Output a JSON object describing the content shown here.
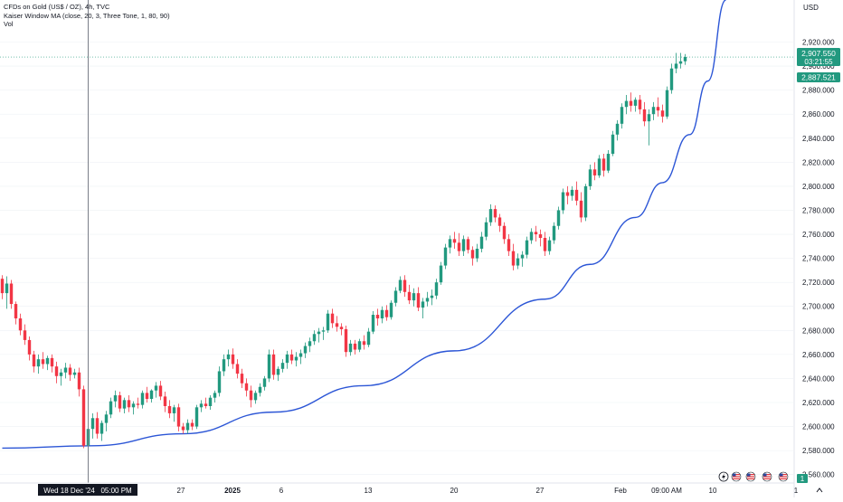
{
  "legend": {
    "title": "CFDs on Gold (US$ / OZ), 4h, TVC",
    "indicator": "Kaiser Window MA (close, 20, 3, Three Tone, 1, 80, 90)",
    "volume": "Vol"
  },
  "colors": {
    "up": "#22997f",
    "down": "#f23645",
    "curve": "#2c56d6",
    "grid": "#eef1f5",
    "axis_text": "#131722",
    "crosshair": "#7b7f89",
    "label_bg": "#131722"
  },
  "crosshair_label": "Wed 18 Dec '24   05:00 PM",
  "price_scale": {
    "currency": "USD",
    "ylim": [
      2553,
      2955
    ],
    "ticks": [
      2560,
      2580,
      2600,
      2620,
      2640,
      2660,
      2680,
      2700,
      2720,
      2740,
      2760,
      2780,
      2800,
      2820,
      2840,
      2860,
      2880,
      2900,
      2920
    ],
    "tick_labels": [
      "2,560.000",
      "2,580.000",
      "2,600.000",
      "2,620.000",
      "2,640.000",
      "2,660.000",
      "2,680.000",
      "2,700.000",
      "2,720.000",
      "2,740.000",
      "2,760.000",
      "2,780.000",
      "2,800.000",
      "2,820.000",
      "2,840.000",
      "2,860.000",
      "2,880.000",
      "2,900.000",
      "2,920.000"
    ],
    "last_price": "2,907.550",
    "countdown": "03:21:55",
    "ma_value": "2,887.521",
    "volume_badge": "1"
  },
  "time_axis": {
    "labels": [
      "27",
      "2025",
      "6",
      "13",
      "20",
      "27",
      "Feb",
      "09:00 AM",
      "10",
      "1"
    ]
  },
  "status_icons": [
    "lightning-icon",
    "us-flag-icon",
    "us-flag-icon",
    "us-flag-icon",
    "us-flag-icon"
  ],
  "chart_data": {
    "type": "candlestick",
    "timeframe": "4h",
    "ohlc": [
      [
        2723,
        2726,
        2706,
        2711
      ],
      [
        2711,
        2725,
        2698,
        2719
      ],
      [
        2719,
        2722,
        2698,
        2702
      ],
      [
        2702,
        2704,
        2685,
        2690
      ],
      [
        2690,
        2694,
        2676,
        2680
      ],
      [
        2680,
        2685,
        2668,
        2672
      ],
      [
        2672,
        2675,
        2655,
        2660
      ],
      [
        2660,
        2663,
        2645,
        2650
      ],
      [
        2650,
        2660,
        2644,
        2656
      ],
      [
        2656,
        2662,
        2648,
        2652
      ],
      [
        2652,
        2659,
        2647,
        2657
      ],
      [
        2657,
        2660,
        2645,
        2650
      ],
      [
        2650,
        2654,
        2636,
        2642
      ],
      [
        2642,
        2648,
        2634,
        2645
      ],
      [
        2645,
        2653,
        2640,
        2649
      ],
      [
        2649,
        2652,
        2638,
        2643
      ],
      [
        2643,
        2648,
        2640,
        2645
      ],
      [
        2645,
        2649,
        2625,
        2631
      ],
      [
        2631,
        2634,
        2582,
        2584
      ],
      [
        2584,
        2600,
        2582,
        2598
      ],
      [
        2598,
        2611,
        2590,
        2607
      ],
      [
        2607,
        2612,
        2590,
        2594
      ],
      [
        2594,
        2605,
        2588,
        2603
      ],
      [
        2603,
        2613,
        2596,
        2610
      ],
      [
        2610,
        2624,
        2607,
        2621
      ],
      [
        2621,
        2630,
        2616,
        2626
      ],
      [
        2626,
        2629,
        2612,
        2615
      ],
      [
        2615,
        2624,
        2611,
        2622
      ],
      [
        2622,
        2626,
        2612,
        2616
      ],
      [
        2616,
        2621,
        2610,
        2619
      ],
      [
        2619,
        2624,
        2615,
        2618
      ],
      [
        2618,
        2630,
        2615,
        2628
      ],
      [
        2628,
        2633,
        2620,
        2623
      ],
      [
        2623,
        2631,
        2620,
        2630
      ],
      [
        2630,
        2637,
        2624,
        2634
      ],
      [
        2634,
        2638,
        2622,
        2625
      ],
      [
        2625,
        2629,
        2612,
        2617
      ],
      [
        2617,
        2622,
        2607,
        2611
      ],
      [
        2611,
        2618,
        2604,
        2616
      ],
      [
        2616,
        2619,
        2596,
        2600
      ],
      [
        2600,
        2603,
        2594,
        2597
      ],
      [
        2597,
        2606,
        2594,
        2603
      ],
      [
        2603,
        2606,
        2597,
        2600
      ],
      [
        2600,
        2618,
        2598,
        2616
      ],
      [
        2616,
        2622,
        2612,
        2619
      ],
      [
        2619,
        2624,
        2615,
        2617
      ],
      [
        2617,
        2626,
        2614,
        2624
      ],
      [
        2624,
        2630,
        2620,
        2628
      ],
      [
        2628,
        2650,
        2625,
        2646
      ],
      [
        2646,
        2660,
        2642,
        2656
      ],
      [
        2656,
        2664,
        2650,
        2660
      ],
      [
        2660,
        2665,
        2648,
        2652
      ],
      [
        2652,
        2656,
        2640,
        2644
      ],
      [
        2644,
        2648,
        2632,
        2636
      ],
      [
        2636,
        2640,
        2625,
        2630
      ],
      [
        2630,
        2634,
        2616,
        2622
      ],
      [
        2622,
        2630,
        2619,
        2628
      ],
      [
        2628,
        2636,
        2625,
        2633
      ],
      [
        2633,
        2642,
        2630,
        2640
      ],
      [
        2640,
        2664,
        2637,
        2660
      ],
      [
        2660,
        2664,
        2639,
        2643
      ],
      [
        2643,
        2650,
        2638,
        2648
      ],
      [
        2648,
        2656,
        2645,
        2653
      ],
      [
        2653,
        2663,
        2648,
        2660
      ],
      [
        2660,
        2664,
        2652,
        2655
      ],
      [
        2655,
        2662,
        2650,
        2658
      ],
      [
        2658,
        2664,
        2652,
        2661
      ],
      [
        2661,
        2670,
        2657,
        2667
      ],
      [
        2667,
        2674,
        2662,
        2671
      ],
      [
        2671,
        2680,
        2668,
        2677
      ],
      [
        2677,
        2682,
        2670,
        2679
      ],
      [
        2679,
        2683,
        2672,
        2680
      ],
      [
        2680,
        2697,
        2678,
        2694
      ],
      [
        2694,
        2698,
        2682,
        2686
      ],
      [
        2686,
        2692,
        2679,
        2683
      ],
      [
        2683,
        2686,
        2676,
        2681
      ],
      [
        2681,
        2684,
        2658,
        2662
      ],
      [
        2662,
        2672,
        2659,
        2669
      ],
      [
        2669,
        2672,
        2660,
        2664
      ],
      [
        2664,
        2673,
        2662,
        2671
      ],
      [
        2671,
        2676,
        2664,
        2668
      ],
      [
        2668,
        2682,
        2666,
        2679
      ],
      [
        2679,
        2696,
        2677,
        2693
      ],
      [
        2693,
        2698,
        2684,
        2690
      ],
      [
        2690,
        2700,
        2686,
        2697
      ],
      [
        2697,
        2701,
        2688,
        2691
      ],
      [
        2691,
        2705,
        2689,
        2703
      ],
      [
        2703,
        2716,
        2700,
        2713
      ],
      [
        2713,
        2725,
        2711,
        2722
      ],
      [
        2722,
        2726,
        2708,
        2712
      ],
      [
        2712,
        2718,
        2702,
        2705
      ],
      [
        2705,
        2715,
        2700,
        2711
      ],
      [
        2711,
        2716,
        2696,
        2699
      ],
      [
        2699,
        2707,
        2690,
        2704
      ],
      [
        2704,
        2712,
        2700,
        2707
      ],
      [
        2707,
        2714,
        2701,
        2709
      ],
      [
        2709,
        2723,
        2706,
        2720
      ],
      [
        2720,
        2737,
        2718,
        2734
      ],
      [
        2734,
        2752,
        2731,
        2749
      ],
      [
        2749,
        2759,
        2744,
        2756
      ],
      [
        2756,
        2762,
        2748,
        2753
      ],
      [
        2753,
        2761,
        2742,
        2746
      ],
      [
        2746,
        2759,
        2742,
        2756
      ],
      [
        2756,
        2758,
        2744,
        2747
      ],
      [
        2747,
        2750,
        2734,
        2740
      ],
      [
        2740,
        2752,
        2737,
        2748
      ],
      [
        2748,
        2762,
        2745,
        2758
      ],
      [
        2758,
        2774,
        2755,
        2770
      ],
      [
        2770,
        2785,
        2767,
        2781
      ],
      [
        2781,
        2784,
        2770,
        2774
      ],
      [
        2774,
        2777,
        2762,
        2767
      ],
      [
        2767,
        2770,
        2752,
        2756
      ],
      [
        2756,
        2760,
        2742,
        2746
      ],
      [
        2746,
        2752,
        2730,
        2734
      ],
      [
        2734,
        2744,
        2731,
        2740
      ],
      [
        2740,
        2746,
        2733,
        2743
      ],
      [
        2743,
        2758,
        2740,
        2755
      ],
      [
        2755,
        2765,
        2752,
        2762
      ],
      [
        2762,
        2767,
        2754,
        2760
      ],
      [
        2760,
        2764,
        2750,
        2757
      ],
      [
        2757,
        2762,
        2742,
        2746
      ],
      [
        2746,
        2758,
        2743,
        2755
      ],
      [
        2755,
        2770,
        2752,
        2767
      ],
      [
        2767,
        2783,
        2764,
        2780
      ],
      [
        2780,
        2798,
        2777,
        2795
      ],
      [
        2795,
        2800,
        2785,
        2792
      ],
      [
        2792,
        2800,
        2788,
        2797
      ],
      [
        2797,
        2804,
        2784,
        2788
      ],
      [
        2788,
        2795,
        2770,
        2774
      ],
      [
        2774,
        2802,
        2771,
        2800
      ],
      [
        2800,
        2818,
        2797,
        2814
      ],
      [
        2814,
        2820,
        2805,
        2809
      ],
      [
        2809,
        2826,
        2807,
        2823
      ],
      [
        2823,
        2827,
        2808,
        2813
      ],
      [
        2813,
        2830,
        2811,
        2827
      ],
      [
        2827,
        2846,
        2825,
        2843
      ],
      [
        2843,
        2855,
        2838,
        2852
      ],
      [
        2852,
        2869,
        2848,
        2866
      ],
      [
        2866,
        2876,
        2860,
        2871
      ],
      [
        2871,
        2878,
        2862,
        2867
      ],
      [
        2867,
        2874,
        2862,
        2872
      ],
      [
        2872,
        2876,
        2860,
        2864
      ],
      [
        2864,
        2870,
        2850,
        2854
      ],
      [
        2854,
        2864,
        2834,
        2860
      ],
      [
        2860,
        2870,
        2855,
        2866
      ],
      [
        2866,
        2874,
        2858,
        2863
      ],
      [
        2863,
        2868,
        2853,
        2858
      ],
      [
        2858,
        2883,
        2856,
        2880
      ],
      [
        2880,
        2902,
        2877,
        2898
      ],
      [
        2898,
        2911,
        2894,
        2902
      ],
      [
        2902,
        2911,
        2898,
        2904
      ],
      [
        2904,
        2910,
        2901,
        2907.55
      ]
    ],
    "ma_curve": {
      "name": "Kaiser Window MA (close, 20, 3, Three Tone, 1, 80, 90)",
      "x_index": [
        0,
        20,
        40,
        60,
        80,
        100,
        120,
        130,
        140,
        146,
        152,
        156,
        160
      ],
      "y": [
        2582,
        2584,
        2594,
        2612,
        2634,
        2663,
        2706,
        2735,
        2774,
        2803,
        2843,
        2887.521,
        2955
      ]
    }
  }
}
